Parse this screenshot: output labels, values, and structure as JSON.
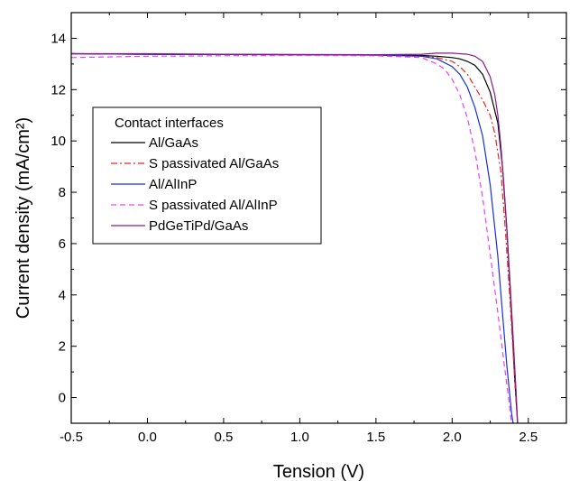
{
  "chart_data": {
    "type": "line",
    "title": "",
    "xlabel": "Tension (V)",
    "ylabel": "Current density (mA/cm²)",
    "xlim": [
      -0.5,
      2.75
    ],
    "ylim": [
      -1,
      15
    ],
    "x_ticks": [
      -0.5,
      0.0,
      0.5,
      1.0,
      1.5,
      2.0,
      2.5
    ],
    "x_tick_labels": [
      "-0.5",
      "0.0",
      "0.5",
      "1.0",
      "1.5",
      "2.0",
      "2.5"
    ],
    "y_ticks": [
      0,
      2,
      4,
      6,
      8,
      10,
      12,
      14
    ],
    "y_tick_labels": [
      "0",
      "2",
      "4",
      "6",
      "8",
      "10",
      "12",
      "14"
    ],
    "grid": false,
    "legend": {
      "title": "Contact interfaces",
      "placement": "center-left"
    },
    "series": [
      {
        "name": "Al/GaAs",
        "color": "#000000",
        "style": "solid",
        "x": [
          -0.5,
          0.0,
          0.5,
          1.0,
          1.5,
          1.8,
          1.9,
          2.0,
          2.05,
          2.1,
          2.15,
          2.2,
          2.25,
          2.3,
          2.33,
          2.36,
          2.39,
          2.41,
          2.43
        ],
        "y": [
          13.4,
          13.38,
          13.37,
          13.36,
          13.35,
          13.33,
          13.3,
          13.25,
          13.2,
          13.1,
          12.95,
          12.6,
          11.9,
          10.7,
          9.0,
          6.5,
          3.2,
          0.8,
          -1.0
        ]
      },
      {
        "name": "S passivated Al/GaAs",
        "color": "#e8241c",
        "style": "dashdot",
        "x": [
          -0.5,
          0.0,
          0.5,
          1.0,
          1.5,
          1.8,
          1.9,
          2.0,
          2.05,
          2.1,
          2.15,
          2.2,
          2.25,
          2.28,
          2.32,
          2.35,
          2.38,
          2.41,
          2.43
        ],
        "y": [
          13.4,
          13.38,
          13.37,
          13.36,
          13.35,
          13.3,
          13.25,
          13.1,
          12.9,
          12.6,
          12.1,
          11.6,
          11.0,
          10.3,
          8.8,
          6.5,
          3.8,
          0.8,
          -1.0
        ]
      },
      {
        "name": "Al/AlInP",
        "color": "#1530e0",
        "style": "solid",
        "x": [
          -0.5,
          0.0,
          0.5,
          1.0,
          1.5,
          1.8,
          1.9,
          2.0,
          2.05,
          2.1,
          2.15,
          2.2,
          2.25,
          2.3,
          2.33,
          2.36,
          2.38,
          2.39,
          2.4
        ],
        "y": [
          13.4,
          13.38,
          13.37,
          13.36,
          13.34,
          13.3,
          13.2,
          12.9,
          12.6,
          12.1,
          11.3,
          10.2,
          8.3,
          5.5,
          3.3,
          1.2,
          0.0,
          -0.6,
          -1.0
        ]
      },
      {
        "name": "S passivated Al/AlInP",
        "color": "#f040f0",
        "style": "dashed",
        "x": [
          -0.5,
          0.0,
          0.5,
          1.0,
          1.5,
          1.8,
          1.9,
          1.95,
          2.0,
          2.05,
          2.1,
          2.15,
          2.2,
          2.25,
          2.3,
          2.34,
          2.37,
          2.39
        ],
        "y": [
          13.25,
          13.3,
          13.32,
          13.33,
          13.32,
          13.25,
          13.0,
          12.8,
          12.4,
          11.8,
          10.9,
          9.6,
          7.8,
          5.6,
          3.3,
          1.4,
          0.0,
          -1.0
        ]
      },
      {
        "name": "PdGeTiPd/GaAs",
        "color": "#8a1a8a",
        "style": "solid",
        "x": [
          -0.5,
          0.0,
          0.5,
          1.0,
          1.5,
          1.8,
          1.9,
          2.0,
          2.1,
          2.15,
          2.2,
          2.25,
          2.28,
          2.3,
          2.32,
          2.34,
          2.36,
          2.38,
          2.4,
          2.42,
          2.43
        ],
        "y": [
          13.4,
          13.4,
          13.38,
          13.37,
          13.36,
          13.38,
          13.42,
          13.42,
          13.38,
          13.3,
          13.1,
          12.5,
          11.8,
          11.0,
          9.8,
          8.3,
          6.5,
          4.5,
          2.4,
          0.2,
          -1.0
        ]
      }
    ]
  }
}
